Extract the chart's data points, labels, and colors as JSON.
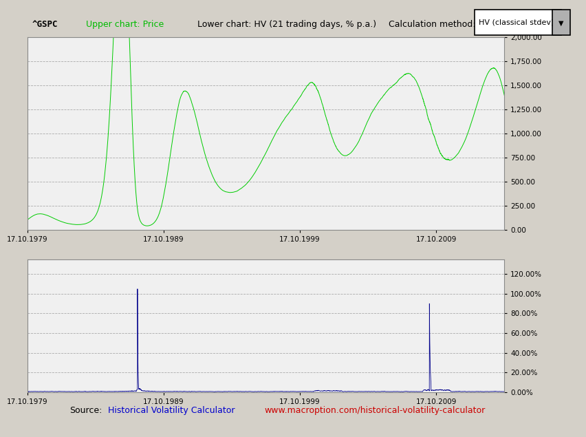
{
  "title_left": "^GSPC",
  "title_upper": "Upper chart: Price",
  "title_lower": "Lower chart: HV (21 trading days, % p.a.)",
  "title_calc": "Calculation method:",
  "title_method": "HV (classical stdev)",
  "source_label": "Source:",
  "source_name": "Historical Volatility Calculator",
  "source_url": "www.macroption.com/historical-volatility-calculator",
  "upper_ylim": [
    0,
    2000
  ],
  "upper_yticks": [
    0,
    250,
    500,
    750,
    1000,
    1250,
    1500,
    1750,
    2000
  ],
  "upper_ytick_labels": [
    "0.00",
    "250.00",
    "500.00",
    "750.00",
    "1,000.00",
    "1,250.00",
    "1,500.00",
    "1,750.00",
    "2,000.00"
  ],
  "lower_ylim": [
    0,
    1.35
  ],
  "lower_yticks": [
    0,
    0.2,
    0.4,
    0.6,
    0.8,
    1.0,
    1.2
  ],
  "lower_ytick_labels": [
    "0.00%",
    "20.00%",
    "40.00%",
    "60.00%",
    "80.00%",
    "100.00%",
    "120.00%"
  ],
  "price_color": "#00cc00",
  "vol_color": "#00008B",
  "bg_color": "#d4d0c8",
  "chart_bg": "#f0f0f0",
  "header_bg": "#c8c8c8",
  "grid_color": "#999999",
  "xtick_labels": [
    "17.10.1979",
    "17.10.1989",
    "17.10.1999",
    "17.10.2009"
  ],
  "source_color": "#000000",
  "source_name_color": "#0000cc",
  "source_url_color": "#cc0000",
  "n_years": 35,
  "trading_days_per_year": 252
}
